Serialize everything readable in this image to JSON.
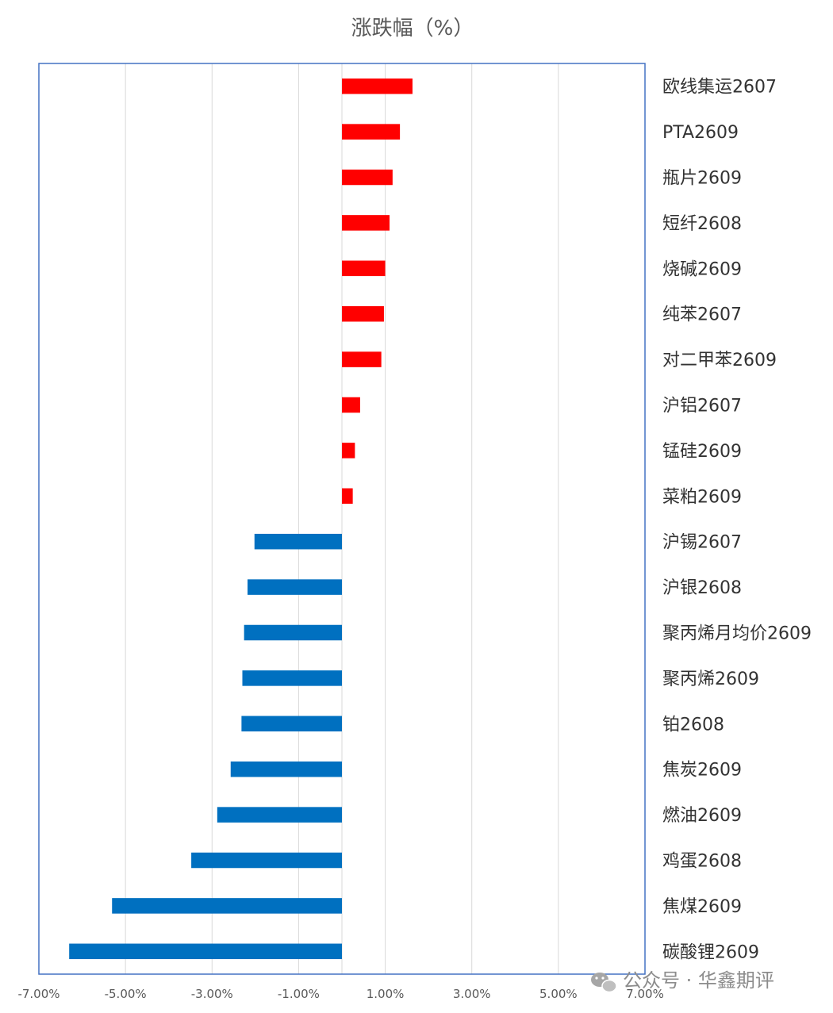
{
  "chart_data": {
    "type": "bar",
    "orientation": "horizontal",
    "title": "涨跌幅（%）",
    "xlabel": "",
    "ylabel": "",
    "xlim": [
      -7,
      7
    ],
    "x_ticks": [
      "-7.00%",
      "-5.00%",
      "-3.00%",
      "-1.00%",
      "1.00%",
      "3.00%",
      "5.00%",
      "7.00%"
    ],
    "x_tick_values": [
      -7,
      -5,
      -3,
      -1,
      1,
      3,
      5,
      7
    ],
    "grid": true,
    "legend": "none",
    "categories": [
      "欧线集运2607",
      "PTA2609",
      "瓶片2609",
      "短纤2608",
      "烧碱2609",
      "纯苯2607",
      "对二甲苯2609",
      "沪铝2607",
      "锰硅2609",
      "菜粕2609",
      "沪锡2607",
      "沪银2608",
      "聚丙烯月均价2609",
      "聚丙烯2609",
      "铂2608",
      "焦炭2609",
      "燃油2609",
      "鸡蛋2608",
      "焦煤2609",
      "碳酸锂2609"
    ],
    "values": [
      1.63,
      1.34,
      1.17,
      1.1,
      1.0,
      0.97,
      0.91,
      0.42,
      0.3,
      0.25,
      -2.02,
      -2.18,
      -2.26,
      -2.3,
      -2.32,
      -2.57,
      -2.88,
      -3.48,
      -5.31,
      -6.3
    ],
    "colors": {
      "positive": "#ff0000",
      "negative": "#0070c0",
      "plot_border": "#4472c4",
      "grid": "#d9d9d9"
    }
  },
  "watermark": {
    "text": "公众号 · 华鑫期评",
    "icon": "wechat-icon"
  }
}
